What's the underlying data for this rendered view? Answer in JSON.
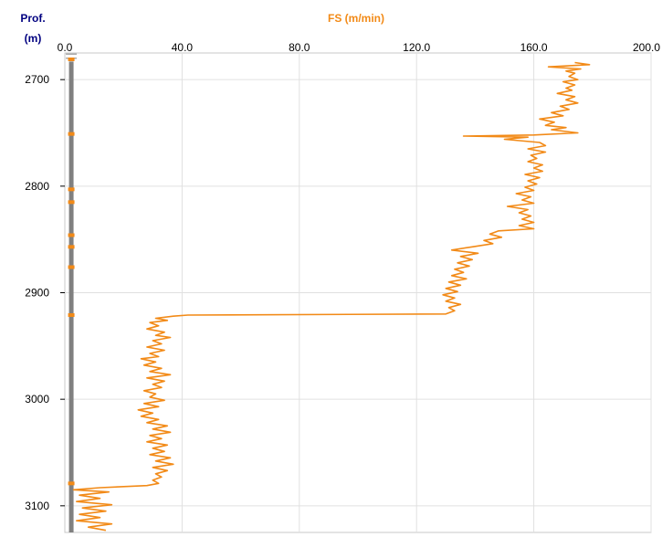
{
  "header": {
    "depth_title": "Prof.",
    "depth_unit": "(m)",
    "fs_title": "FS (m/min)"
  },
  "chart_data": {
    "type": "line",
    "title": "",
    "xlabel": "FS (m/min)",
    "ylabel": "Prof. (m)",
    "x_position": "top",
    "xlim": [
      0,
      200
    ],
    "ylim": [
      3125,
      2675
    ],
    "x_ticks": [
      "0.0",
      "40.0",
      "80.0",
      "120.0",
      "160.0",
      "200.0"
    ],
    "x_tick_values": [
      0,
      40,
      80,
      120,
      160,
      200
    ],
    "y_ticks": [
      "2700",
      "2800",
      "2900",
      "3000",
      "3100"
    ],
    "y_tick_values": [
      2700,
      2800,
      2900,
      3000,
      3100
    ],
    "grid": true,
    "colors": {
      "series": "#f28a17",
      "track": "#808080",
      "depth_title": "#000080",
      "fs_title": "#f28a17"
    },
    "series": [
      {
        "color": "#f28a17",
        "points": [
          [
            174,
            2684
          ],
          [
            179,
            2686
          ],
          [
            165,
            2688
          ],
          [
            176,
            2690
          ],
          [
            171,
            2692
          ],
          [
            174,
            2694
          ],
          [
            172,
            2697
          ],
          [
            175,
            2700
          ],
          [
            170,
            2702
          ],
          [
            174,
            2705
          ],
          [
            171,
            2708
          ],
          [
            173,
            2710
          ],
          [
            168,
            2713
          ],
          [
            174,
            2716
          ],
          [
            171,
            2719
          ],
          [
            175,
            2722
          ],
          [
            169,
            2725
          ],
          [
            172,
            2728
          ],
          [
            166,
            2731
          ],
          [
            170,
            2734
          ],
          [
            162,
            2737
          ],
          [
            167,
            2740
          ],
          [
            164,
            2743
          ],
          [
            171,
            2745
          ],
          [
            166,
            2747
          ],
          [
            175,
            2750
          ],
          [
            160,
            2752
          ],
          [
            136,
            2753
          ],
          [
            158,
            2754
          ],
          [
            150,
            2756
          ],
          [
            162,
            2759
          ],
          [
            164,
            2762
          ],
          [
            158,
            2765
          ],
          [
            164,
            2768
          ],
          [
            159,
            2771
          ],
          [
            161,
            2774
          ],
          [
            158,
            2777
          ],
          [
            163,
            2780
          ],
          [
            160,
            2783
          ],
          [
            163,
            2786
          ],
          [
            157,
            2789
          ],
          [
            162,
            2792
          ],
          [
            158,
            2795
          ],
          [
            161,
            2798
          ],
          [
            157,
            2801
          ],
          [
            160,
            2804
          ],
          [
            154,
            2807
          ],
          [
            159,
            2810
          ],
          [
            156,
            2813
          ],
          [
            160,
            2816
          ],
          [
            151,
            2819
          ],
          [
            158,
            2822
          ],
          [
            155,
            2825
          ],
          [
            159,
            2828
          ],
          [
            156,
            2831
          ],
          [
            160,
            2834
          ],
          [
            155,
            2837
          ],
          [
            160,
            2840
          ],
          [
            148,
            2842
          ],
          [
            145,
            2845
          ],
          [
            149,
            2848
          ],
          [
            143,
            2851
          ],
          [
            146,
            2854
          ],
          [
            139,
            2857
          ],
          [
            132,
            2860
          ],
          [
            141,
            2863
          ],
          [
            135,
            2866
          ],
          [
            139,
            2869
          ],
          [
            134,
            2872
          ],
          [
            138,
            2875
          ],
          [
            133,
            2878
          ],
          [
            136,
            2881
          ],
          [
            132,
            2884
          ],
          [
            137,
            2887
          ],
          [
            131,
            2890
          ],
          [
            135,
            2893
          ],
          [
            130,
            2896
          ],
          [
            134,
            2899
          ],
          [
            129,
            2902
          ],
          [
            133,
            2905
          ],
          [
            130,
            2908
          ],
          [
            135,
            2911
          ],
          [
            131,
            2914
          ],
          [
            133,
            2917
          ],
          [
            130,
            2920
          ],
          [
            42,
            2921
          ],
          [
            37,
            2922
          ],
          [
            31,
            2924
          ],
          [
            35,
            2926
          ],
          [
            29,
            2928
          ],
          [
            32,
            2931
          ],
          [
            28,
            2934
          ],
          [
            34,
            2937
          ],
          [
            31,
            2940
          ],
          [
            36,
            2942
          ],
          [
            30,
            2945
          ],
          [
            33,
            2948
          ],
          [
            28,
            2951
          ],
          [
            34,
            2954
          ],
          [
            29,
            2957
          ],
          [
            32,
            2960
          ],
          [
            26,
            2962
          ],
          [
            31,
            2965
          ],
          [
            27,
            2968
          ],
          [
            33,
            2971
          ],
          [
            29,
            2974
          ],
          [
            36,
            2977
          ],
          [
            28,
            2980
          ],
          [
            34,
            2983
          ],
          [
            30,
            2986
          ],
          [
            33,
            2989
          ],
          [
            27,
            2992
          ],
          [
            31,
            2995
          ],
          [
            29,
            2998
          ],
          [
            34,
            3001
          ],
          [
            27,
            3004
          ],
          [
            32,
            3007
          ],
          [
            25,
            3010
          ],
          [
            30,
            3013
          ],
          [
            26,
            3016
          ],
          [
            32,
            3019
          ],
          [
            28,
            3022
          ],
          [
            35,
            3025
          ],
          [
            30,
            3028
          ],
          [
            36,
            3031
          ],
          [
            29,
            3034
          ],
          [
            33,
            3037
          ],
          [
            28,
            3040
          ],
          [
            35,
            3043
          ],
          [
            30,
            3046
          ],
          [
            34,
            3049
          ],
          [
            29,
            3052
          ],
          [
            36,
            3055
          ],
          [
            31,
            3058
          ],
          [
            37,
            3061
          ],
          [
            30,
            3064
          ],
          [
            35,
            3067
          ],
          [
            31,
            3070
          ],
          [
            33,
            3073
          ],
          [
            30,
            3076
          ],
          [
            32,
            3079
          ],
          [
            28,
            3081
          ],
          [
            12,
            3083
          ],
          [
            3,
            3085
          ],
          [
            15,
            3087
          ],
          [
            5,
            3090
          ],
          [
            12,
            3093
          ],
          [
            4,
            3096
          ],
          [
            16,
            3099
          ],
          [
            6,
            3102
          ],
          [
            14,
            3105
          ],
          [
            5,
            3108
          ],
          [
            12,
            3111
          ],
          [
            4,
            3114
          ],
          [
            16,
            3117
          ],
          [
            8,
            3120
          ],
          [
            14,
            3123
          ]
        ]
      }
    ],
    "depth_track_gaps": [
      2681,
      2751,
      2803,
      2815,
      2846,
      2857,
      2876,
      2921,
      3079
    ]
  }
}
